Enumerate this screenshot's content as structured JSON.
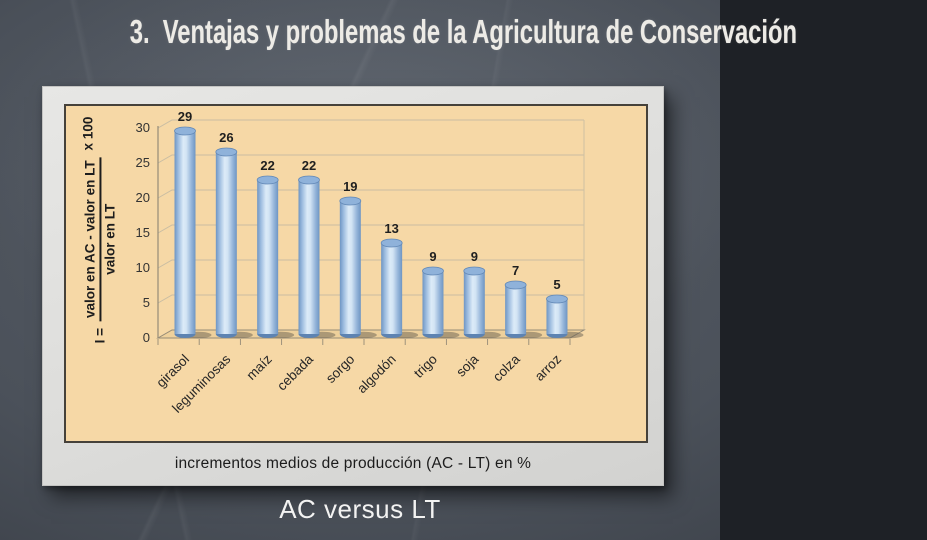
{
  "slide": {
    "title": "3.  Ventajas y problemas de la Agricultura de Conservación",
    "footer": "AC versus LT"
  },
  "chart_data": {
    "type": "bar",
    "style": "3d-cylinder",
    "title": "",
    "caption": "incrementos medios de producción (AC - LT) en %",
    "categories": [
      "girasol",
      "leguminosas",
      "maíz",
      "cebada",
      "sorgo",
      "algodón",
      "trigo",
      "soja",
      "colza",
      "arroz"
    ],
    "values": [
      29,
      26,
      22,
      22,
      19,
      13,
      9,
      9,
      7,
      5
    ],
    "yticks": [
      0,
      5,
      10,
      15,
      20,
      25,
      30
    ],
    "ylim": [
      0,
      30
    ],
    "grid": true,
    "legend": false,
    "ylabel_formula": {
      "prefix": "I =",
      "numerator": "valor en AC - valor en LT",
      "denominator": "valor en LT",
      "suffix": "x 100"
    },
    "colors": {
      "plot_background": "#f6d8a6",
      "gridline": "#c9bda3",
      "axis": "#958b77",
      "floor_fill": "#eed09b",
      "bar_edge": "#6e95c3",
      "bar_light": "#dcebf8",
      "bar_top": "#8fb2da",
      "bar_top_stroke": "#6288b6",
      "bar_bottom": "#5d83b2",
      "shadow": "rgba(104,96,82,0.5)",
      "value_label": "#1f1f1f",
      "tick_label": "#333333",
      "category_label": "#262626"
    }
  },
  "figure": {
    "frame_color": "#dddddb"
  },
  "colors": {
    "chalkboard": "#4b515a",
    "title_text": "#edebe6",
    "footer_text": "#f3f3f2"
  }
}
